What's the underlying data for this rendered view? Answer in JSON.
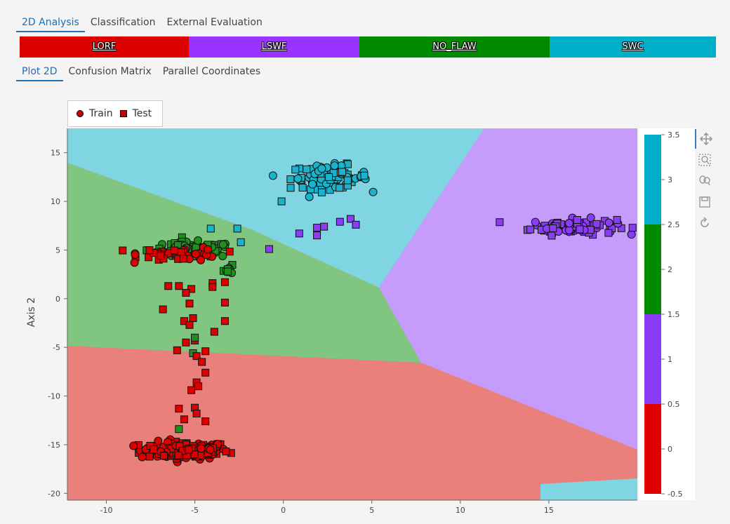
{
  "top_tabs": [
    {
      "label": "2D Analysis",
      "active": true
    },
    {
      "label": "Classification",
      "active": false
    },
    {
      "label": "External Evaluation",
      "active": false
    }
  ],
  "class_bar": [
    {
      "label": "LORF",
      "color": "#dd0000"
    },
    {
      "label": "LSWF",
      "color": "#9933ff"
    },
    {
      "label": "NO_FLAW",
      "color": "#008a00"
    },
    {
      "label": "SWC",
      "color": "#00aec8"
    }
  ],
  "sub_tabs": [
    {
      "label": "Plot 2D",
      "active": true
    },
    {
      "label": "Confusion Matrix",
      "active": false
    },
    {
      "label": "Parallel Coordinates",
      "active": false
    }
  ],
  "legend": {
    "train": "Train",
    "test": "Test"
  },
  "toolbar": [
    "pan-icon",
    "box-zoom-icon",
    "wheel-zoom-icon",
    "save-icon",
    "reset-icon"
  ],
  "chart_data": {
    "type": "scatter",
    "xlabel": "",
    "ylabel": "Axis 2",
    "xlim": [
      -12.2,
      20
    ],
    "ylim": [
      -20.7,
      17.5
    ],
    "xticks": [
      -10,
      -5,
      0,
      5,
      10,
      15
    ],
    "yticks": [
      15,
      10,
      5,
      0,
      -5,
      -10,
      -15,
      -20
    ],
    "classes": [
      {
        "id": 0,
        "name": "LORF",
        "color": "#dd0000",
        "region_color": "#e9807b"
      },
      {
        "id": 1,
        "name": "LSWF",
        "color": "#8b3cf5",
        "region_color": "#c59bfb"
      },
      {
        "id": 2,
        "name": "NO_FLAW",
        "color": "#1f8f1f",
        "region_color": "#80c680"
      },
      {
        "id": 3,
        "name": "SWC",
        "color": "#1ab3cc",
        "region_color": "#7fd5e2"
      }
    ],
    "clusters": [
      {
        "class": "LORF",
        "split": "train+test",
        "center": [
          -5.6,
          -15.6
        ],
        "spread": [
          2.5,
          0.9
        ],
        "count": 150
      },
      {
        "class": "LSWF",
        "split": "train+test",
        "center": [
          16.4,
          7.4
        ],
        "spread": [
          2.4,
          0.8
        ],
        "count": 90
      },
      {
        "class": "SWC",
        "split": "train+test",
        "center": [
          2.6,
          12.5
        ],
        "spread": [
          2.2,
          1.2
        ],
        "count": 90
      },
      {
        "class": "NO_FLAW",
        "split": "train+test",
        "center": [
          -5.2,
          5.0
        ],
        "spread": [
          2.4,
          0.8
        ],
        "count": 110
      },
      {
        "class": "LORF",
        "split": "train+test",
        "center": [
          -5.8,
          4.6
        ],
        "spread": [
          2.3,
          0.7
        ],
        "count": 45
      },
      {
        "class": "NO_FLAW",
        "split": "train+test",
        "center": [
          -3.0,
          3.0
        ],
        "spread": [
          0.4,
          0.4
        ],
        "count": 12
      }
    ],
    "test_points": [
      {
        "x": -4.1,
        "y": 7.2,
        "class": "SWC"
      },
      {
        "x": -2.6,
        "y": 7.2,
        "class": "SWC"
      },
      {
        "x": -2.4,
        "y": 5.8,
        "class": "SWC"
      },
      {
        "x": -0.8,
        "y": 5.1,
        "class": "LSWF"
      },
      {
        "x": 0.9,
        "y": 6.7,
        "class": "LSWF"
      },
      {
        "x": 1.9,
        "y": 7.3,
        "class": "LSWF"
      },
      {
        "x": 1.9,
        "y": 6.5,
        "class": "LSWF"
      },
      {
        "x": 2.3,
        "y": 7.4,
        "class": "LSWF"
      },
      {
        "x": 3.2,
        "y": 7.9,
        "class": "LSWF"
      },
      {
        "x": 3.8,
        "y": 8.2,
        "class": "LSWF"
      },
      {
        "x": 4.1,
        "y": 7.6,
        "class": "LSWF"
      },
      {
        "x": -0.1,
        "y": 10.0,
        "class": "SWC"
      },
      {
        "x": -6.5,
        "y": 1.3,
        "class": "LORF"
      },
      {
        "x": -5.9,
        "y": 1.3,
        "class": "LORF"
      },
      {
        "x": -5.2,
        "y": 1.0,
        "class": "LORF"
      },
      {
        "x": -5.5,
        "y": 0.6,
        "class": "LORF"
      },
      {
        "x": -6.8,
        "y": -1.1,
        "class": "LORF"
      },
      {
        "x": -5.3,
        "y": -0.5,
        "class": "LORF"
      },
      {
        "x": -4.0,
        "y": 1.6,
        "class": "LORF"
      },
      {
        "x": -4.0,
        "y": 1.2,
        "class": "LORF"
      },
      {
        "x": -3.3,
        "y": 1.7,
        "class": "LORF"
      },
      {
        "x": -3.3,
        "y": -0.4,
        "class": "LORF"
      },
      {
        "x": -5.6,
        "y": -2.3,
        "class": "LORF"
      },
      {
        "x": -5.1,
        "y": -2.0,
        "class": "LORF"
      },
      {
        "x": -5.3,
        "y": -2.7,
        "class": "LORF"
      },
      {
        "x": -3.9,
        "y": -3.4,
        "class": "LORF"
      },
      {
        "x": -3.3,
        "y": -2.3,
        "class": "LORF"
      },
      {
        "x": -5.5,
        "y": -4.5,
        "class": "LORF"
      },
      {
        "x": -5.0,
        "y": -4.3,
        "class": "LORF"
      },
      {
        "x": -5.0,
        "y": -4.0,
        "class": "NO_FLAW"
      },
      {
        "x": -6.0,
        "y": -5.3,
        "class": "LORF"
      },
      {
        "x": -5.1,
        "y": -5.6,
        "class": "NO_FLAW"
      },
      {
        "x": -4.9,
        "y": -5.9,
        "class": "LORF"
      },
      {
        "x": -4.4,
        "y": -5.4,
        "class": "LORF"
      },
      {
        "x": -4.6,
        "y": -6.5,
        "class": "LORF"
      },
      {
        "x": -4.4,
        "y": -7.6,
        "class": "LORF"
      },
      {
        "x": -4.9,
        "y": -8.6,
        "class": "LORF"
      },
      {
        "x": -5.2,
        "y": -9.4,
        "class": "LORF"
      },
      {
        "x": -4.8,
        "y": -9.0,
        "class": "LORF"
      },
      {
        "x": -5.9,
        "y": -11.3,
        "class": "LORF"
      },
      {
        "x": -5.0,
        "y": -11.2,
        "class": "LORF"
      },
      {
        "x": -4.9,
        "y": -11.8,
        "class": "LORF"
      },
      {
        "x": -4.4,
        "y": -12.6,
        "class": "LORF"
      },
      {
        "x": -5.6,
        "y": -12.4,
        "class": "LORF"
      },
      {
        "x": -5.9,
        "y": -13.4,
        "class": "NO_FLAW"
      }
    ],
    "colorbar": {
      "ticks": [
        3.5,
        3,
        2.5,
        2,
        1.5,
        1,
        0.5,
        0,
        -0.5
      ],
      "bands": [
        {
          "from": 2.5,
          "to": 3.5,
          "color": "#00aec8"
        },
        {
          "from": 1.5,
          "to": 2.5,
          "color": "#008a00"
        },
        {
          "from": 0.5,
          "to": 1.5,
          "color": "#8b3cf5"
        },
        {
          "from": -0.5,
          "to": 0.5,
          "color": "#dd0000"
        }
      ]
    }
  }
}
